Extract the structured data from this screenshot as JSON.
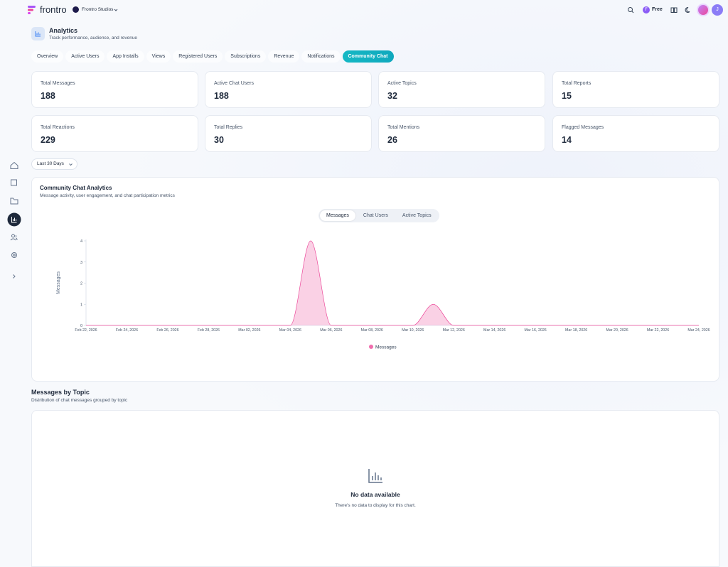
{
  "header": {
    "brand": "frontro",
    "workspace": "Frontro Studios",
    "plan_initial": "F",
    "plan": "Free",
    "user_initial": "J"
  },
  "page": {
    "title": "Analytics",
    "subtitle": "Track performance, audience, and revenue"
  },
  "tabs": [
    {
      "label": "Overview"
    },
    {
      "label": "Active Users"
    },
    {
      "label": "App Installs"
    },
    {
      "label": "Views"
    },
    {
      "label": "Registered Users"
    },
    {
      "label": "Subscriptions"
    },
    {
      "label": "Revenue"
    },
    {
      "label": "Notifications"
    },
    {
      "label": "Community Chat",
      "active": true
    }
  ],
  "stats": [
    {
      "label": "Total Messages",
      "value": 188
    },
    {
      "label": "Active Chat Users",
      "value": 188
    },
    {
      "label": "Active Topics",
      "value": 32
    },
    {
      "label": "Total Reports",
      "value": 15
    },
    {
      "label": "Total Reactions",
      "value": 229
    },
    {
      "label": "Total Replies",
      "value": 30
    },
    {
      "label": "Total Mentions",
      "value": 26
    },
    {
      "label": "Flagged Messages",
      "value": 14
    }
  ],
  "date_range": "Last 30 Days",
  "chart_data": {
    "type": "area",
    "title": "Community Chat Analytics",
    "subtitle": "Message activity, user engagement, and chat participation metrics",
    "toggles": [
      {
        "label": "Messages",
        "active": true
      },
      {
        "label": "Chat Users"
      },
      {
        "label": "Active Topics"
      }
    ],
    "categories": [
      "Feb 22, 2026",
      null,
      "Feb 24, 2026",
      null,
      "Feb 26, 2026",
      null,
      "Feb 28, 2026",
      null,
      "Mar 02, 2026",
      null,
      "Mar 04, 2026",
      null,
      "Mar 06, 2026",
      null,
      "Mar 08, 2026",
      null,
      "Mar 10, 2026",
      null,
      "Mar 12, 2026",
      null,
      "Mar 14, 2026",
      null,
      "Mar 16, 2026",
      null,
      "Mar 18, 2026",
      null,
      "Mar 20, 2026",
      null,
      "Mar 22, 2026",
      null,
      "Mar 24, 2026"
    ],
    "series": [
      {
        "name": "Messages",
        "color": "#ec4899",
        "values": [
          0,
          0,
          0,
          0,
          0,
          0,
          0,
          0,
          0,
          0,
          0,
          4,
          0,
          0,
          0,
          0,
          0,
          1,
          0,
          0,
          0,
          0,
          0,
          0,
          0,
          0,
          0,
          0,
          0,
          0,
          0
        ]
      }
    ],
    "y_label": "Messages",
    "ylim": [
      0,
      4
    ],
    "yticks": [
      0,
      1,
      2,
      3,
      4
    ],
    "grid": false,
    "legend": "bottom"
  },
  "topic_section": {
    "title": "Messages by Topic",
    "subtitle": "Distribution of chat messages grouped by topic",
    "empty_title": "No data available",
    "empty_text": "There's no data to display for this chart."
  }
}
